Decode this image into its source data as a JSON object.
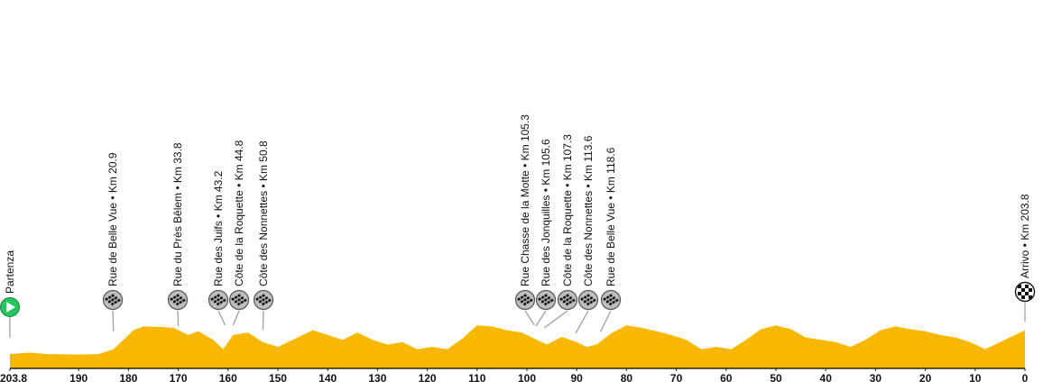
{
  "profile": {
    "colors": {
      "fill": "#F9B800",
      "axis": "#222222",
      "leader": "#9a9a9a",
      "start": "#22C55E",
      "sector": "#BDBDBD"
    },
    "km_total": 203.8,
    "ticks": [
      "203.8",
      "190",
      "180",
      "170",
      "160",
      "150",
      "140",
      "130",
      "120",
      "110",
      "100",
      "90",
      "80",
      "70",
      "60",
      "50",
      "40",
      "30",
      "20",
      "10",
      "0"
    ],
    "tick_values": [
      203.8,
      190,
      180,
      170,
      160,
      150,
      140,
      130,
      120,
      110,
      100,
      90,
      80,
      70,
      60,
      50,
      40,
      30,
      20,
      10,
      0
    ],
    "elevation_profile": [
      [
        203.8,
        0.3
      ],
      [
        200,
        0.33
      ],
      [
        196,
        0.3
      ],
      [
        190,
        0.29
      ],
      [
        186,
        0.3
      ],
      [
        183,
        0.4
      ],
      [
        181,
        0.6
      ],
      [
        179,
        0.8
      ],
      [
        177,
        0.88
      ],
      [
        174,
        0.87
      ],
      [
        171,
        0.85
      ],
      [
        168,
        0.7
      ],
      [
        166,
        0.78
      ],
      [
        163,
        0.6
      ],
      [
        161,
        0.4
      ],
      [
        159,
        0.7
      ],
      [
        156,
        0.75
      ],
      [
        153,
        0.55
      ],
      [
        150,
        0.45
      ],
      [
        147,
        0.6
      ],
      [
        143,
        0.8
      ],
      [
        140,
        0.7
      ],
      [
        137,
        0.6
      ],
      [
        134,
        0.75
      ],
      [
        131,
        0.6
      ],
      [
        128,
        0.5
      ],
      [
        125,
        0.55
      ],
      [
        122,
        0.4
      ],
      [
        119,
        0.45
      ],
      [
        116,
        0.4
      ],
      [
        113,
        0.62
      ],
      [
        110,
        0.9
      ],
      [
        107,
        0.88
      ],
      [
        104,
        0.8
      ],
      [
        101,
        0.75
      ],
      [
        98,
        0.6
      ],
      [
        96,
        0.5
      ],
      [
        93,
        0.66
      ],
      [
        90,
        0.55
      ],
      [
        88,
        0.45
      ],
      [
        86,
        0.5
      ],
      [
        83,
        0.74
      ],
      [
        80,
        0.9
      ],
      [
        77,
        0.85
      ],
      [
        74,
        0.78
      ],
      [
        71,
        0.7
      ],
      [
        68,
        0.6
      ],
      [
        65,
        0.4
      ],
      [
        62,
        0.45
      ],
      [
        59,
        0.4
      ],
      [
        56,
        0.6
      ],
      [
        53,
        0.82
      ],
      [
        50,
        0.9
      ],
      [
        47,
        0.82
      ],
      [
        44,
        0.65
      ],
      [
        41,
        0.6
      ],
      [
        38,
        0.55
      ],
      [
        35,
        0.45
      ],
      [
        32,
        0.6
      ],
      [
        29,
        0.8
      ],
      [
        26,
        0.88
      ],
      [
        23,
        0.82
      ],
      [
        20,
        0.78
      ],
      [
        17,
        0.7
      ],
      [
        14,
        0.65
      ],
      [
        11,
        0.55
      ],
      [
        8,
        0.4
      ],
      [
        5,
        0.55
      ],
      [
        2,
        0.7
      ],
      [
        0,
        0.8
      ]
    ],
    "start_label": "Partenza",
    "finish_label": "Arrivo • Km 203.8",
    "sectors": [
      {
        "label": "Rue de Belle Vue • Km 20.9",
        "km": 183.0
      },
      {
        "label": "Rue du Près Bêlem • Km 33.8",
        "km": 170.0
      },
      {
        "label": "Rue des Juifs • Km 43.2",
        "km": 160.6
      },
      {
        "label": "Côte de la Roquette • Km 44.8",
        "km": 159.0
      },
      {
        "label": "Côte des Nonnettes • Km 50.8",
        "km": 153.0
      },
      {
        "label": "Rue Chasse de la Motte • Km 105.3",
        "km": 98.5
      },
      {
        "label": "Rue des Jonquilles • Km 105.6",
        "km": 98.2
      },
      {
        "label": "Côte de la Roquette • Km 107.3",
        "km": 96.5
      },
      {
        "label": "Côte des Nonnettes • Km 113.6",
        "km": 90.2
      },
      {
        "label": "Rue de Belle Vue • Km 118.6",
        "km": 85.2
      }
    ]
  }
}
